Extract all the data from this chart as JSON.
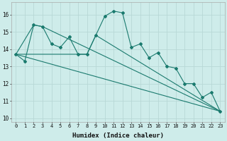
{
  "xlabel": "Humidex (Indice chaleur)",
  "xlim": [
    -0.5,
    23.5
  ],
  "ylim": [
    9.8,
    16.7
  ],
  "yticks": [
    10,
    11,
    12,
    13,
    14,
    15,
    16
  ],
  "xticks": [
    0,
    1,
    2,
    3,
    4,
    5,
    6,
    7,
    8,
    9,
    10,
    11,
    12,
    13,
    14,
    15,
    16,
    17,
    18,
    19,
    20,
    21,
    22,
    23
  ],
  "bg_color": "#ceecea",
  "grid_color": "#b8d8d6",
  "line_color": "#1a7a6e",
  "series1_x": [
    0,
    1,
    2,
    3,
    4,
    5,
    6,
    7,
    8,
    9,
    10,
    11,
    12,
    13,
    14,
    15,
    16,
    17,
    18,
    19,
    20,
    21,
    22,
    23
  ],
  "series1_y": [
    13.7,
    13.3,
    15.4,
    15.3,
    14.3,
    14.1,
    14.7,
    13.7,
    13.7,
    14.8,
    15.9,
    16.2,
    16.1,
    14.1,
    14.3,
    13.5,
    13.8,
    13.0,
    12.9,
    12.0,
    12.0,
    11.2,
    11.5,
    10.4
  ],
  "series2_x": [
    0,
    2,
    3,
    23
  ],
  "series2_y": [
    13.7,
    15.4,
    15.3,
    10.4
  ],
  "series3_x": [
    0,
    23
  ],
  "series3_y": [
    13.7,
    10.4
  ],
  "series4_x": [
    0,
    7,
    8,
    9,
    23
  ],
  "series4_y": [
    13.7,
    13.7,
    13.7,
    14.8,
    10.4
  ],
  "tick_fontsize": 5.0,
  "xlabel_fontsize": 6.5
}
